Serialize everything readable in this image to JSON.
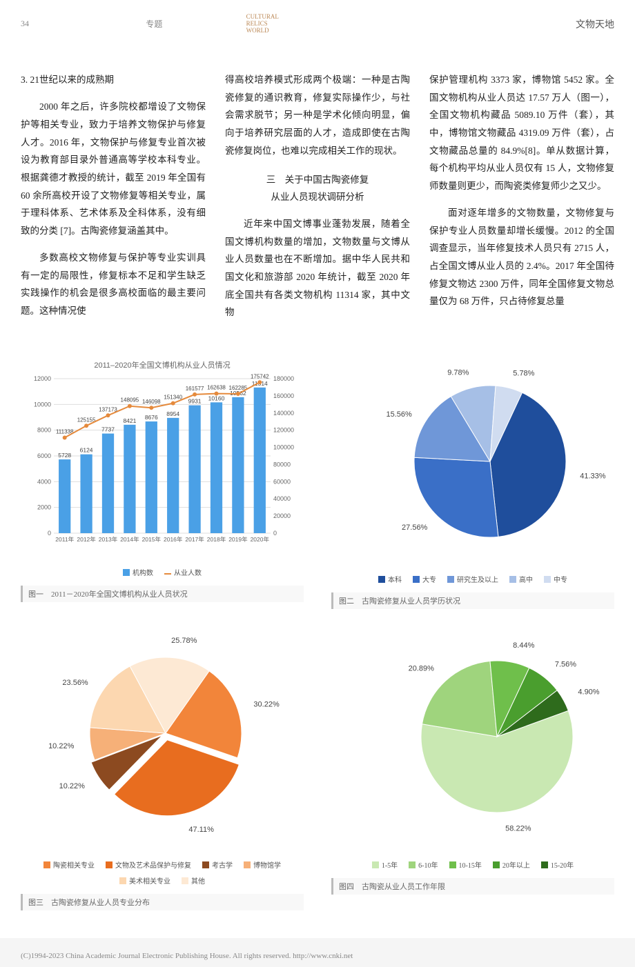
{
  "header": {
    "page_number": "34",
    "section": "专题",
    "brand_en": "CULTURAL\nRELICS\nWORLD",
    "brand_cn": "文物天地"
  },
  "text": {
    "sec_heading": "3. 21世纪以来的成熟期",
    "p1": "2000 年之后，许多院校都增设了文物保护等相关专业，致力于培养文物保护与修复人才。2016 年，文物保护与修复专业首次被设为教育部目录外普通高等学校本科专业。根据龚德才教授的统计，截至 2019 年全国有 60 余所高校开设了文物修复等相关专业，属于理科体系、艺术体系及全科体系，没有细致的分类 [7]。古陶瓷修复涵盖其中。",
    "p2": "多数高校文物修复与保护等专业实训具有一定的局限性，修复标本不足和学生缺乏实践操作的机会是很多高校面临的最主要问题。这种情况使",
    "p3": "得高校培养模式形成两个极端：一种是古陶瓷修复的通识教育，修复实际操作少，与社会需求脱节；另一种是学术化倾向明显，偏向于培养研究层面的人才，造成即使在古陶瓷修复岗位，也难以完成相关工作的现状。",
    "mid_title1": "三　关于中国古陶瓷修复",
    "mid_title2": "从业人员现状调研分析",
    "p4": "近年来中国文博事业蓬勃发展，随着全国文博机构数量的增加，文物数量与文博从业人员数量也在不断增加。据中华人民共和国文化和旅游部 2020 年统计，截至 2020 年底全国共有各类文物机构 11314 家，其中文物",
    "p5": "保护管理机构 3373 家，博物馆 5452 家。全国文物机构从业人员达 17.57 万人（图一），全国文物机构藏品 5089.10 万件（套），其中，博物馆文物藏品 4319.09 万件（套），占文物藏品总量的 84.9%[8]。单从数据计算，每个机构平均从业人员仅有 15 人，文物修复师数量则更少，而陶瓷类修复师少之又少。",
    "p6": "面对逐年增多的文物数量，文物修复与保护专业人员数量却增长缓慢。2012 的全国调查显示，当年修复技术人员只有 2715 人，占全国文博从业人员的 2.4%。2017 年全国待修复文物达 2300 万件，同年全国修复文物总量仅为 68 万件，只占待修复总量"
  },
  "chart1": {
    "type": "bar+line",
    "title": "2011–2020年全国文博机构从业人员情况",
    "caption": "图一　2011－2020年全国文博机构从业人员状况",
    "years": [
      "2011年",
      "2012年",
      "2013年",
      "2014年",
      "2015年",
      "2016年",
      "2017年",
      "2018年",
      "2019年",
      "2020年"
    ],
    "bar_values": [
      5728,
      6124,
      7737,
      8421,
      8676,
      8954,
      9931,
      10160,
      10562,
      11314
    ],
    "line_values": [
      111338,
      125155,
      137173,
      148095,
      146098,
      151340,
      161577,
      162638,
      162285,
      175742
    ],
    "bar_color": "#4aa0e6",
    "line_color": "#e58a3c",
    "grid_color": "#dddddd",
    "y1_max": 12000,
    "y1_step": 2000,
    "y2_max": 180000,
    "y2_step": 20000,
    "legend": {
      "bar": "机构数",
      "line": "从业人数"
    }
  },
  "chart2": {
    "type": "pie",
    "caption": "图二　古陶瓷修复从业人员学历状况",
    "slices": [
      {
        "label": "本科",
        "value": 41.33,
        "color": "#1f4e9c"
      },
      {
        "label": "大专",
        "value": 27.56,
        "color": "#3a6fc7"
      },
      {
        "label": "研究生及以上",
        "value": 15.56,
        "color": "#6f97d8"
      },
      {
        "label": "高中",
        "value": 9.78,
        "color": "#a6bfe6"
      },
      {
        "label": "中专",
        "value": 5.78,
        "color": "#d0dcf0"
      }
    ],
    "label_fontsize": 11,
    "legend_items": [
      "本科",
      "大专",
      "研究生及以上",
      "高中",
      "中专"
    ]
  },
  "chart3": {
    "type": "pie",
    "caption": "图三　古陶瓷修复从业人员专业分布",
    "slices": [
      {
        "label": "陶瓷相关专业",
        "value": 30.22,
        "color": "#f2853a",
        "explode": 0
      },
      {
        "label": "文物及艺术品保护与修复",
        "value": 47.11,
        "color": "#e86d1f",
        "explode": 10
      },
      {
        "label": "考古学",
        "value": 10.22,
        "color": "#8c4a20",
        "explode": 6
      },
      {
        "label": "博物馆学",
        "value": 10.22,
        "color": "#f6b078",
        "explode": 0
      },
      {
        "label": "美术相关专业",
        "value": 23.56,
        "color": "#fcd7b0",
        "explode": 0
      },
      {
        "label": "其他",
        "value": 25.78,
        "color": "#fde9d4",
        "explode": 0
      }
    ],
    "note": "multi-response",
    "legend_items": [
      "陶瓷相关专业",
      "文物及艺术品保护与修复",
      "考古学",
      "博物馆学",
      "美术相关专业",
      "其他"
    ]
  },
  "chart4": {
    "type": "pie",
    "caption": "图四　古陶瓷从业人员工作年限",
    "slices": [
      {
        "label": "1-5年",
        "value": 58.22,
        "color": "#c9e8b2"
      },
      {
        "label": "6-10年",
        "value": 20.89,
        "color": "#9fd47d"
      },
      {
        "label": "10-15年",
        "value": 8.44,
        "color": "#6fbf4b"
      },
      {
        "label": "20年以上",
        "value": 7.56,
        "color": "#4a9e2e"
      },
      {
        "label": "15-20年",
        "value": 4.9,
        "color": "#2e6b1c"
      }
    ],
    "legend_items": [
      "1-5年",
      "6-10年",
      "10-15年",
      "20年以上",
      "15-20年"
    ]
  },
  "footer": "(C)1994-2023 China Academic Journal Electronic Publishing House. All rights reserved.    http://www.cnki.net"
}
